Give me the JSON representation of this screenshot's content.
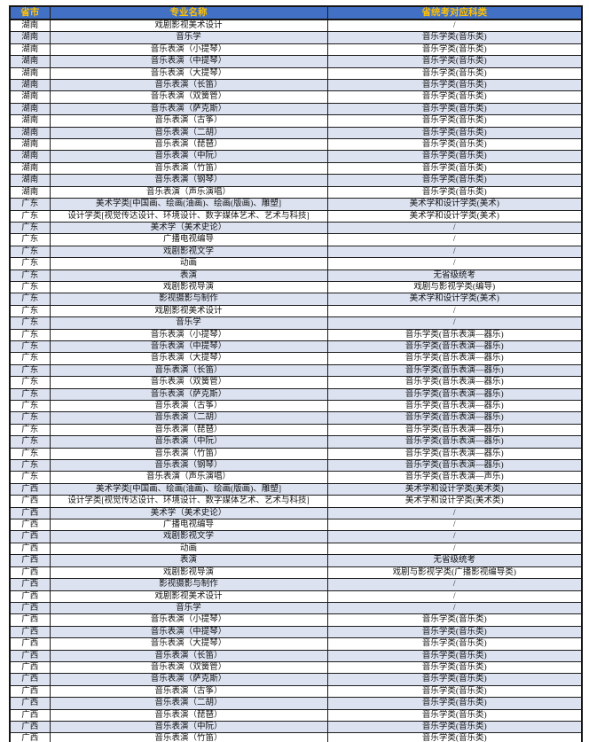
{
  "table": {
    "columns": [
      "省市",
      "专业名称",
      "省统考对应科类"
    ],
    "rows": [
      {
        "province": "湖南",
        "major": "戏剧影视美术设计",
        "category": "/"
      },
      {
        "province": "湖南",
        "major": "音乐学",
        "category": "音乐学类(音乐类)"
      },
      {
        "province": "湖南",
        "major": "音乐表演（小提琴）",
        "category": "音乐学类(音乐类)"
      },
      {
        "province": "湖南",
        "major": "音乐表演（中提琴）",
        "category": "音乐学类(音乐类)"
      },
      {
        "province": "湖南",
        "major": "音乐表演（大提琴）",
        "category": "音乐学类(音乐类)"
      },
      {
        "province": "湖南",
        "major": "音乐表演（长笛）",
        "category": "音乐学类(音乐类)"
      },
      {
        "province": "湖南",
        "major": "音乐表演（双簧管）",
        "category": "音乐学类(音乐类)"
      },
      {
        "province": "湖南",
        "major": "音乐表演（萨克斯）",
        "category": "音乐学类(音乐类)"
      },
      {
        "province": "湖南",
        "major": "音乐表演（古筝）",
        "category": "音乐学类(音乐类)"
      },
      {
        "province": "湖南",
        "major": "音乐表演（二胡）",
        "category": "音乐学类(音乐类)"
      },
      {
        "province": "湖南",
        "major": "音乐表演（琵琶）",
        "category": "音乐学类(音乐类)"
      },
      {
        "province": "湖南",
        "major": "音乐表演（中阮）",
        "category": "音乐学类(音乐类)"
      },
      {
        "province": "湖南",
        "major": "音乐表演（竹笛）",
        "category": "音乐学类(音乐类)"
      },
      {
        "province": "湖南",
        "major": "音乐表演（钢琴）",
        "category": "音乐学类(音乐类)"
      },
      {
        "province": "湖南",
        "major": "音乐表演（声乐演唱）",
        "category": "音乐学类(音乐类)"
      },
      {
        "province": "广东",
        "major": "美术学类[中国画、绘画(油画)、绘画(版画)、雕塑]",
        "category": "美术学和设计学类(美术)"
      },
      {
        "province": "广东",
        "major": "设计学类[视觉传达设计、环境设计、数字媒体艺术、艺术与科技]",
        "category": "美术学和设计学类(美术)"
      },
      {
        "province": "广东",
        "major": "美术学（美术史论）",
        "category": "/"
      },
      {
        "province": "广东",
        "major": "广播电视编导",
        "category": "/"
      },
      {
        "province": "广东",
        "major": "戏剧影视文学",
        "category": "/"
      },
      {
        "province": "广东",
        "major": "动画",
        "category": "/"
      },
      {
        "province": "广东",
        "major": "表演",
        "category": "无省级统考"
      },
      {
        "province": "广东",
        "major": "戏剧影视导演",
        "category": "戏剧与影视学类(编导)"
      },
      {
        "province": "广东",
        "major": "影视摄影与制作",
        "category": "美术学和设计学类(美术)"
      },
      {
        "province": "广东",
        "major": "戏剧影视美术设计",
        "category": "/"
      },
      {
        "province": "广东",
        "major": "音乐学",
        "category": "/"
      },
      {
        "province": "广东",
        "major": "音乐表演（小提琴）",
        "category": "音乐学类(音乐表演—器乐)"
      },
      {
        "province": "广东",
        "major": "音乐表演（中提琴）",
        "category": "音乐学类(音乐表演—器乐)"
      },
      {
        "province": "广东",
        "major": "音乐表演（大提琴）",
        "category": "音乐学类(音乐表演—器乐)"
      },
      {
        "province": "广东",
        "major": "音乐表演（长笛）",
        "category": "音乐学类(音乐表演—器乐)"
      },
      {
        "province": "广东",
        "major": "音乐表演（双簧管）",
        "category": "音乐学类(音乐表演—器乐)"
      },
      {
        "province": "广东",
        "major": "音乐表演（萨克斯）",
        "category": "音乐学类(音乐表演—器乐)"
      },
      {
        "province": "广东",
        "major": "音乐表演（古筝）",
        "category": "音乐学类(音乐表演—器乐)"
      },
      {
        "province": "广东",
        "major": "音乐表演（二胡）",
        "category": "音乐学类(音乐表演—器乐)"
      },
      {
        "province": "广东",
        "major": "音乐表演（琵琶）",
        "category": "音乐学类(音乐表演—器乐)"
      },
      {
        "province": "广东",
        "major": "音乐表演（中阮）",
        "category": "音乐学类(音乐表演—器乐)"
      },
      {
        "province": "广东",
        "major": "音乐表演（竹笛）",
        "category": "音乐学类(音乐表演—器乐)"
      },
      {
        "province": "广东",
        "major": "音乐表演（钢琴）",
        "category": "音乐学类(音乐表演—器乐)"
      },
      {
        "province": "广东",
        "major": "音乐表演（声乐演唱）",
        "category": "音乐学类(音乐表演—声乐)"
      },
      {
        "province": "广西",
        "major": "美术学类[中国画、绘画(油画)、绘画(版画)、雕塑]",
        "category": "美术学和设计学类(美术类)"
      },
      {
        "province": "广西",
        "major": "设计学类[视觉传达设计、环境设计、数字媒体艺术、艺术与科技]",
        "category": "美术学和设计学类(美术类)"
      },
      {
        "province": "广西",
        "major": "美术学（美术史论）",
        "category": "/"
      },
      {
        "province": "广西",
        "major": "广播电视编导",
        "category": "/"
      },
      {
        "province": "广西",
        "major": "戏剧影视文学",
        "category": "/"
      },
      {
        "province": "广西",
        "major": "动画",
        "category": "/"
      },
      {
        "province": "广西",
        "major": "表演",
        "category": "无省级统考"
      },
      {
        "province": "广西",
        "major": "戏剧影视导演",
        "category": "戏剧与影视学类(广播影视编导类)"
      },
      {
        "province": "广西",
        "major": "影视摄影与制作",
        "category": "/"
      },
      {
        "province": "广西",
        "major": "戏剧影视美术设计",
        "category": "/"
      },
      {
        "province": "广西",
        "major": "音乐学",
        "category": "/"
      },
      {
        "province": "广西",
        "major": "音乐表演（小提琴）",
        "category": "音乐学类(音乐类)"
      },
      {
        "province": "广西",
        "major": "音乐表演（中提琴）",
        "category": "音乐学类(音乐类)"
      },
      {
        "province": "广西",
        "major": "音乐表演（大提琴）",
        "category": "音乐学类(音乐类)"
      },
      {
        "province": "广西",
        "major": "音乐表演（长笛）",
        "category": "音乐学类(音乐类)"
      },
      {
        "province": "广西",
        "major": "音乐表演（双簧管）",
        "category": "音乐学类(音乐类)"
      },
      {
        "province": "广西",
        "major": "音乐表演（萨克斯）",
        "category": "音乐学类(音乐类)"
      },
      {
        "province": "广西",
        "major": "音乐表演（古筝）",
        "category": "音乐学类(音乐类)"
      },
      {
        "province": "广西",
        "major": "音乐表演（二胡）",
        "category": "音乐学类(音乐类)"
      },
      {
        "province": "广西",
        "major": "音乐表演（琵琶）",
        "category": "音乐学类(音乐类)"
      },
      {
        "province": "广西",
        "major": "音乐表演（中阮）",
        "category": "音乐学类(音乐类)"
      },
      {
        "province": "广西",
        "major": "音乐表演（竹笛）",
        "category": "音乐学类(音乐类)"
      },
      {
        "province": "",
        "major": "",
        "category": ""
      }
    ]
  },
  "colors": {
    "header_bg": "#4270c4",
    "header_text": "#ffc000",
    "stripe_bg": "#dce2f0",
    "border": "#1c1c1c"
  }
}
